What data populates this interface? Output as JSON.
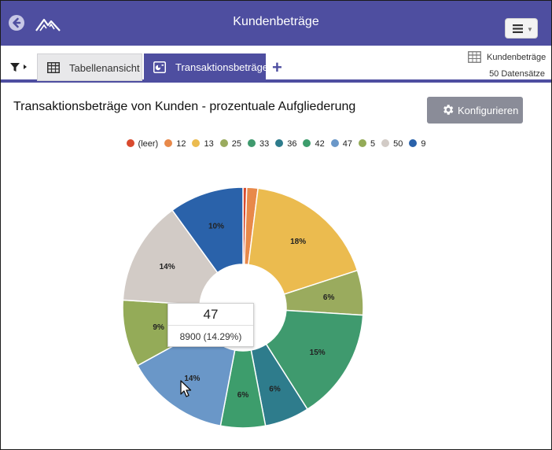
{
  "header": {
    "title": "Kundenbeträge",
    "back_icon": "arrow-left-icon",
    "logo_icon": "mountain-logo-icon",
    "menu_icon": "hamburger-icon"
  },
  "tabs": [
    {
      "label": "Tabellenansicht",
      "icon": "table-icon",
      "active": false
    },
    {
      "label": "Transaktionsbeträge",
      "icon": "chart-icon",
      "active": true
    }
  ],
  "toolbar": {
    "filter_icon": "filter-icon",
    "add_tab_label": "+"
  },
  "dataset": {
    "name": "Kundenbeträge",
    "count": "50 Datensätze"
  },
  "main": {
    "heading": "Transaktionsbeträge von Kunden - prozentuale Aufgliederung",
    "configure_label": "Konfigurieren"
  },
  "colors": {
    "header_bg": "#4e4ea0",
    "button_bg": "#8a8c98"
  },
  "chart_data": {
    "type": "pie",
    "donut": true,
    "legend_position": "top",
    "categories": [
      "(leer)",
      "12",
      "13",
      "25",
      "33",
      "36",
      "42",
      "47",
      "5",
      "50",
      "9"
    ],
    "values": [
      0.5,
      1.5,
      18,
      6,
      15,
      6,
      6,
      14,
      9,
      14,
      10
    ],
    "labels": [
      "",
      "",
      "18%",
      "6%",
      "15%",
      "6%",
      "6%",
      "14%",
      "9%",
      "14%",
      "10%"
    ],
    "colors": [
      "#d94a2e",
      "#e8894a",
      "#ebbb4f",
      "#9aab5e",
      "#3f9a6e",
      "#2e7c8c",
      "#3d9d6c",
      "#6a97c8",
      "#94ab58",
      "#d2cbc6",
      "#2a62aa"
    ]
  },
  "tooltip": {
    "title": "47",
    "value": "8900 (14.29%)"
  }
}
